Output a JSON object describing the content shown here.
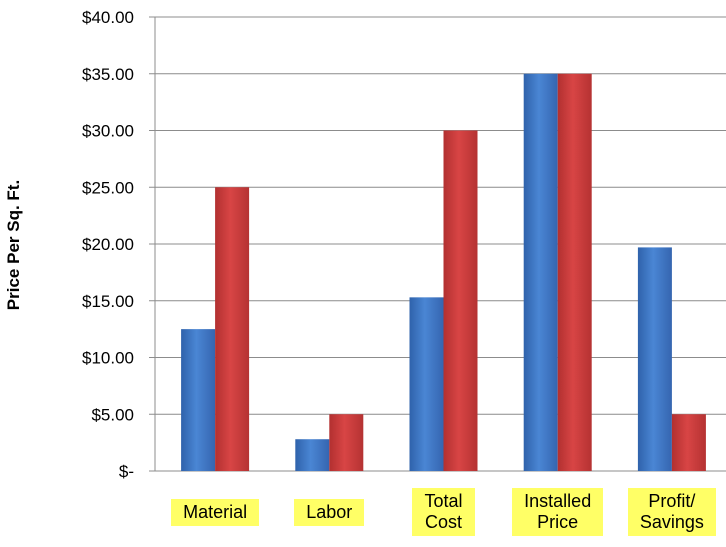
{
  "chart_data": {
    "type": "bar",
    "title": "",
    "xlabel": "",
    "ylabel": "Price Per Sq. Ft.",
    "categories": [
      "Material",
      "Labor",
      "Total\nCost",
      "Installed\nPrice",
      "Profit/\nSavings"
    ],
    "series": [
      {
        "values": [
          12.5,
          2.8,
          15.3,
          35.0,
          19.7
        ],
        "color": "#3e76c3"
      },
      {
        "values": [
          25.0,
          5.0,
          30.0,
          35.0,
          5.0
        ],
        "color": "#c83a3a"
      }
    ],
    "ylim": [
      0,
      40
    ],
    "yticks": [
      0,
      5,
      10,
      15,
      20,
      25,
      30,
      35,
      40
    ],
    "ytick_labels": [
      "$-",
      "$5.00",
      "$10.00",
      "$15.00",
      "$20.00",
      "$25.00",
      "$30.00",
      "$35.00",
      "$40.00"
    ],
    "grid": true,
    "category_label_highlight": "#ffff66"
  }
}
